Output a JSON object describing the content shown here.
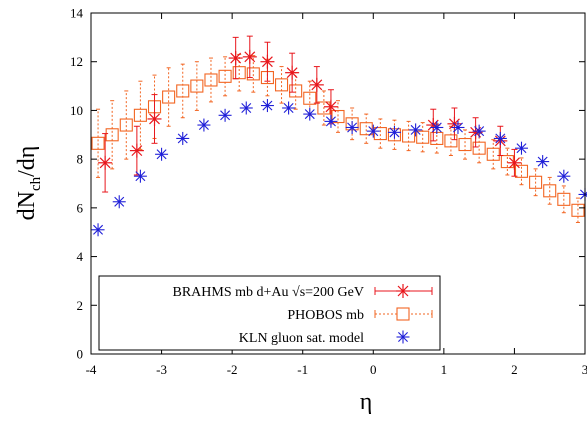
{
  "chart_data": {
    "type": "scatter",
    "xlabel": "η",
    "ylabel_parts": {
      "main": "dN",
      "sub": "ch",
      "tail": "/dη"
    },
    "xlim": [
      -4,
      3
    ],
    "ylim": [
      0,
      14
    ],
    "xticks": [
      "-4",
      "-3",
      "-2",
      "-1",
      "0",
      "1",
      "2",
      "3"
    ],
    "yticks": [
      "0",
      "2",
      "4",
      "6",
      "8",
      "10",
      "12",
      "14"
    ],
    "legend_position": "bottom-left",
    "series": [
      {
        "name": "BRAHMS mb d+Au √s=200 GeV",
        "color": "#e8161c",
        "marker": "star-cross",
        "points": [
          {
            "x": -3.8,
            "y": 7.85,
            "err": 1.2
          },
          {
            "x": -3.35,
            "y": 8.35,
            "err": 1.0
          },
          {
            "x": -3.1,
            "y": 9.65,
            "err": 1.0
          },
          {
            "x": -1.95,
            "y": 12.15,
            "err": 0.85
          },
          {
            "x": -1.75,
            "y": 12.2,
            "err": 0.85
          },
          {
            "x": -1.5,
            "y": 12.0,
            "err": 0.8
          },
          {
            "x": -1.15,
            "y": 11.55,
            "err": 0.8
          },
          {
            "x": -0.8,
            "y": 11.05,
            "err": 0.75
          },
          {
            "x": -0.6,
            "y": 10.15,
            "err": 0.7
          },
          {
            "x": 0.85,
            "y": 9.4,
            "err": 0.65
          },
          {
            "x": 1.15,
            "y": 9.45,
            "err": 0.65
          },
          {
            "x": 1.45,
            "y": 9.1,
            "err": 0.6
          },
          {
            "x": 1.8,
            "y": 8.75,
            "err": 0.6
          },
          {
            "x": 2.0,
            "y": 7.85,
            "err": 0.55
          }
        ]
      },
      {
        "name": "PHOBOS mb",
        "color": "#f26522",
        "marker": "open-square",
        "points": [
          {
            "x": -3.9,
            "y": 8.65,
            "err": 1.4
          },
          {
            "x": -3.7,
            "y": 9.0,
            "err": 1.4
          },
          {
            "x": -3.5,
            "y": 9.4,
            "err": 1.4
          },
          {
            "x": -3.3,
            "y": 9.8,
            "err": 1.4
          },
          {
            "x": -3.1,
            "y": 10.15,
            "err": 1.3
          },
          {
            "x": -2.9,
            "y": 10.55,
            "err": 1.2
          },
          {
            "x": -2.7,
            "y": 10.8,
            "err": 1.1
          },
          {
            "x": -2.5,
            "y": 11.0,
            "err": 1.0
          },
          {
            "x": -2.3,
            "y": 11.25,
            "err": 0.9
          },
          {
            "x": -2.1,
            "y": 11.4,
            "err": 0.8
          },
          {
            "x": -1.9,
            "y": 11.55,
            "err": 0.75
          },
          {
            "x": -1.7,
            "y": 11.5,
            "err": 0.75
          },
          {
            "x": -1.5,
            "y": 11.35,
            "err": 0.75
          },
          {
            "x": -1.3,
            "y": 11.05,
            "err": 0.75
          },
          {
            "x": -1.1,
            "y": 10.8,
            "err": 0.75
          },
          {
            "x": -0.9,
            "y": 10.5,
            "err": 0.7
          },
          {
            "x": -0.7,
            "y": 10.1,
            "err": 0.7
          },
          {
            "x": -0.5,
            "y": 9.75,
            "err": 0.65
          },
          {
            "x": -0.3,
            "y": 9.45,
            "err": 0.65
          },
          {
            "x": -0.1,
            "y": 9.25,
            "err": 0.6
          },
          {
            "x": 0.1,
            "y": 9.05,
            "err": 0.6
          },
          {
            "x": 0.3,
            "y": 9.0,
            "err": 0.6
          },
          {
            "x": 0.5,
            "y": 8.95,
            "err": 0.6
          },
          {
            "x": 0.7,
            "y": 8.9,
            "err": 0.6
          },
          {
            "x": 0.9,
            "y": 8.85,
            "err": 0.6
          },
          {
            "x": 1.1,
            "y": 8.75,
            "err": 0.6
          },
          {
            "x": 1.3,
            "y": 8.6,
            "err": 0.6
          },
          {
            "x": 1.5,
            "y": 8.45,
            "err": 0.6
          },
          {
            "x": 1.7,
            "y": 8.2,
            "err": 0.6
          },
          {
            "x": 1.9,
            "y": 7.9,
            "err": 0.55
          },
          {
            "x": 2.1,
            "y": 7.5,
            "err": 0.55
          },
          {
            "x": 2.3,
            "y": 7.05,
            "err": 0.55
          },
          {
            "x": 2.5,
            "y": 6.7,
            "err": 0.55
          },
          {
            "x": 2.7,
            "y": 6.35,
            "err": 0.55
          },
          {
            "x": 2.9,
            "y": 5.9,
            "err": 0.5
          }
        ]
      },
      {
        "name": "KLN gluon sat. model",
        "color": "#1f1fd8",
        "marker": "asterisk",
        "points": [
          {
            "x": -3.9,
            "y": 5.1
          },
          {
            "x": -3.6,
            "y": 6.25
          },
          {
            "x": -3.3,
            "y": 7.3
          },
          {
            "x": -3.0,
            "y": 8.2
          },
          {
            "x": -2.7,
            "y": 8.85
          },
          {
            "x": -2.4,
            "y": 9.4
          },
          {
            "x": -2.1,
            "y": 9.8
          },
          {
            "x": -1.8,
            "y": 10.1
          },
          {
            "x": -1.5,
            "y": 10.2
          },
          {
            "x": -1.2,
            "y": 10.1
          },
          {
            "x": -0.9,
            "y": 9.85
          },
          {
            "x": -0.6,
            "y": 9.55
          },
          {
            "x": -0.3,
            "y": 9.3
          },
          {
            "x": 0.0,
            "y": 9.15
          },
          {
            "x": 0.3,
            "y": 9.1
          },
          {
            "x": 0.6,
            "y": 9.2
          },
          {
            "x": 0.9,
            "y": 9.3
          },
          {
            "x": 1.2,
            "y": 9.3
          },
          {
            "x": 1.5,
            "y": 9.15
          },
          {
            "x": 1.8,
            "y": 8.85
          },
          {
            "x": 2.1,
            "y": 8.45
          },
          {
            "x": 2.4,
            "y": 7.9
          },
          {
            "x": 2.7,
            "y": 7.3
          },
          {
            "x": 3.0,
            "y": 6.55
          }
        ]
      }
    ]
  }
}
